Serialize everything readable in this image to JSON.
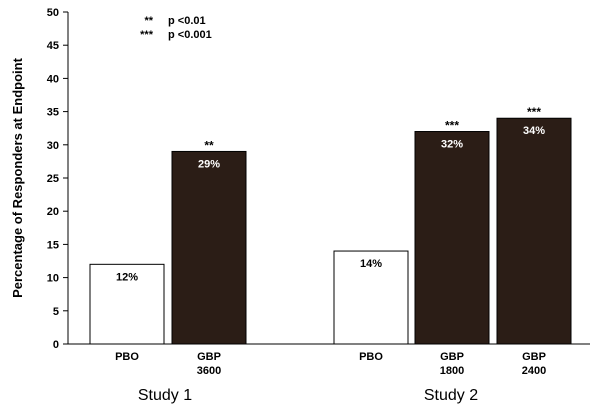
{
  "chart_data": {
    "type": "bar",
    "ylabel": "Percentage of Responders at Endpoint",
    "xlabel": "",
    "ylim": [
      0,
      50
    ],
    "ytick_step": 5,
    "colors": {
      "placebo": "#ffffff",
      "active": "#2b1d16",
      "outline": "#000000"
    },
    "legend": [
      {
        "symbol": "**",
        "text": "p <0.01"
      },
      {
        "symbol": "***",
        "text": "p <0.001"
      }
    ],
    "groups": [
      {
        "label": "Study 1",
        "bars": [
          {
            "label_lines": [
              "PBO"
            ],
            "value": 12,
            "data_label": "12%",
            "sig": "",
            "kind": "placebo"
          },
          {
            "label_lines": [
              "GBP",
              "3600"
            ],
            "value": 29,
            "data_label": "29%",
            "sig": "**",
            "kind": "active"
          }
        ]
      },
      {
        "label": "Study 2",
        "bars": [
          {
            "label_lines": [
              "PBO"
            ],
            "value": 14,
            "data_label": "14%",
            "sig": "",
            "kind": "placebo"
          },
          {
            "label_lines": [
              "GBP",
              "1800"
            ],
            "value": 32,
            "data_label": "32%",
            "sig": "***",
            "kind": "active"
          },
          {
            "label_lines": [
              "GBP",
              "2400"
            ],
            "value": 34,
            "data_label": "34%",
            "sig": "***",
            "kind": "active"
          }
        ]
      }
    ]
  }
}
